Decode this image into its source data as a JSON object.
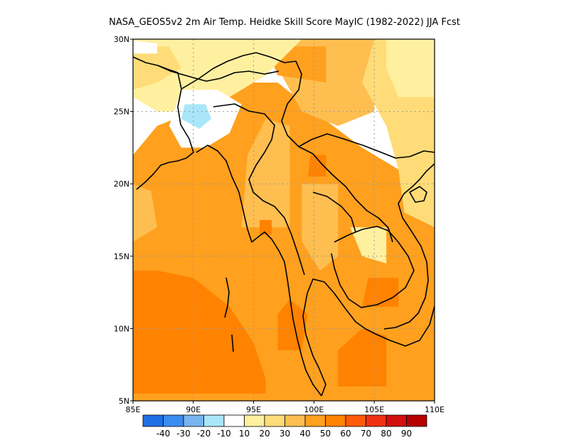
{
  "title": "NASA_GEOS5v2 2m Air Temp. Heidke Skill Score MayIC (1982-2022) JJA Fcst",
  "chart_data": {
    "type": "heatmap",
    "title": "NASA_GEOS5v2 2m Air Temp. Heidke Skill Score MayIC (1982-2022) JJA Fcst",
    "xlim": [
      85,
      110
    ],
    "ylim": [
      5,
      30
    ],
    "x_ticks": [
      {
        "value": 85,
        "label": "85E"
      },
      {
        "value": 90,
        "label": "90E"
      },
      {
        "value": 95,
        "label": "95E"
      },
      {
        "value": 100,
        "label": "100E"
      },
      {
        "value": 105,
        "label": "105E"
      },
      {
        "value": 110,
        "label": "110E"
      }
    ],
    "y_ticks": [
      {
        "value": 5,
        "label": "5N"
      },
      {
        "value": 10,
        "label": "10N"
      },
      {
        "value": 15,
        "label": "15N"
      },
      {
        "value": 20,
        "label": "20N"
      },
      {
        "value": 25,
        "label": "25N"
      },
      {
        "value": 30,
        "label": "30N"
      }
    ],
    "grid": true,
    "colorbar": {
      "placement": "bottom",
      "bins": [
        {
          "color": "#1e6ee6"
        },
        {
          "color": "#3c8cf0"
        },
        {
          "color": "#78b4f0"
        },
        {
          "color": "#aae6fa"
        },
        {
          "color": "#ffffff"
        },
        {
          "color": "#fff0a0"
        },
        {
          "color": "#ffdc78"
        },
        {
          "color": "#ffbe50"
        },
        {
          "color": "#ffa01e"
        },
        {
          "color": "#ff8200"
        },
        {
          "color": "#ff5a0a"
        },
        {
          "color": "#f03214"
        },
        {
          "color": "#d20f0f"
        },
        {
          "color": "#b40000"
        }
      ],
      "labels": [
        "-40",
        "-30",
        "-20",
        "-10",
        "10",
        "20",
        "30",
        "40",
        "50",
        "60",
        "70",
        "80",
        "90"
      ]
    },
    "regions": [
      {
        "level": 40,
        "polygon": [
          [
            85,
            5
          ],
          [
            110,
            5
          ],
          [
            110,
            17
          ],
          [
            107,
            21
          ],
          [
            104,
            22.5
          ],
          [
            100,
            25
          ],
          [
            97,
            27
          ],
          [
            93,
            27
          ],
          [
            90,
            25
          ],
          [
            87,
            24
          ],
          [
            85,
            22
          ]
        ]
      },
      {
        "level": 30,
        "polygon": [
          [
            93,
            30
          ],
          [
            105,
            30
          ],
          [
            105,
            25
          ],
          [
            102,
            24
          ],
          [
            99,
            25
          ],
          [
            97,
            28
          ],
          [
            94,
            29
          ]
        ]
      },
      {
        "level": 40,
        "polygon": [
          [
            96,
            29.5
          ],
          [
            101,
            29.5
          ],
          [
            101,
            27
          ],
          [
            97,
            27.5
          ]
        ]
      },
      {
        "level": 20,
        "polygon": [
          [
            105,
            30
          ],
          [
            110,
            30
          ],
          [
            110,
            17
          ],
          [
            107.5,
            18
          ],
          [
            107,
            21
          ],
          [
            106,
            24
          ],
          [
            104,
            27
          ]
        ]
      },
      {
        "level": 10,
        "polygon": [
          [
            85,
            26
          ],
          [
            85,
            30
          ],
          [
            99,
            30
          ],
          [
            96,
            27.5
          ],
          [
            93,
            26
          ],
          [
            90,
            25
          ],
          [
            87,
            25
          ]
        ]
      },
      {
        "level": 10,
        "polygon": [
          [
            106,
            30
          ],
          [
            110,
            30
          ],
          [
            110,
            26
          ],
          [
            107,
            26
          ],
          [
            106,
            28
          ]
        ]
      },
      {
        "level": 10,
        "polygon": [
          [
            103,
            17
          ],
          [
            106,
            17
          ],
          [
            106,
            14.5
          ],
          [
            104,
            15
          ]
        ]
      },
      {
        "level": 20,
        "polygon": [
          [
            85,
            26.5
          ],
          [
            85,
            29.5
          ],
          [
            88,
            29.5
          ],
          [
            89,
            28
          ],
          [
            87,
            27
          ]
        ]
      },
      {
        "level": -10,
        "polygon": [
          [
            88,
            24
          ],
          [
            89,
            26.5
          ],
          [
            92,
            26.5
          ],
          [
            94,
            25.5
          ],
          [
            93,
            23.5
          ],
          [
            91,
            22.5
          ],
          [
            89,
            22.5
          ]
        ]
      },
      {
        "level": -10,
        "polygon": [
          [
            85,
            29
          ],
          [
            87,
            29
          ],
          [
            87,
            29.7
          ],
          [
            85,
            29.9
          ]
        ]
      },
      {
        "level": -20,
        "polygon": [
          [
            89,
            24.5
          ],
          [
            89.3,
            25.5
          ],
          [
            91,
            25.5
          ],
          [
            91.5,
            24.5
          ],
          [
            90.5,
            23.8
          ]
        ]
      },
      {
        "level": 30,
        "polygon": [
          [
            94,
            17
          ],
          [
            98,
            17
          ],
          [
            98,
            24
          ],
          [
            96,
            24.5
          ],
          [
            94.5,
            22
          ]
        ]
      },
      {
        "level": 30,
        "polygon": [
          [
            99,
            20
          ],
          [
            102,
            20
          ],
          [
            102,
            15
          ],
          [
            100.5,
            14
          ],
          [
            99,
            16
          ]
        ]
      },
      {
        "level": 30,
        "polygon": [
          [
            85,
            16
          ],
          [
            87,
            17
          ],
          [
            86.5,
            19.5
          ],
          [
            85,
            20
          ]
        ]
      },
      {
        "level": 50,
        "polygon": [
          [
            85,
            5.5
          ],
          [
            96,
            5.5
          ],
          [
            96,
            6.5
          ],
          [
            95,
            9
          ],
          [
            93,
            11.5
          ],
          [
            90,
            13.5
          ],
          [
            87,
            14
          ],
          [
            85,
            14
          ]
        ]
      },
      {
        "level": 50,
        "polygon": [
          [
            102,
            6
          ],
          [
            106,
            6
          ],
          [
            106,
            9.5
          ],
          [
            104,
            10
          ],
          [
            102,
            8.5
          ]
        ]
      },
      {
        "level": 50,
        "polygon": [
          [
            97,
            8.5
          ],
          [
            99,
            8.5
          ],
          [
            99.5,
            11
          ],
          [
            98,
            12
          ],
          [
            97,
            11
          ]
        ]
      },
      {
        "level": 50,
        "polygon": [
          [
            104,
            11.5
          ],
          [
            107,
            11.5
          ],
          [
            107,
            13.5
          ],
          [
            104.5,
            13.5
          ]
        ]
      },
      {
        "level": 50,
        "polygon": [
          [
            99.5,
            20.5
          ],
          [
            101,
            20.5
          ],
          [
            101,
            22
          ],
          [
            99.7,
            22
          ]
        ]
      },
      {
        "level": 50,
        "polygon": [
          [
            95.5,
            16.5
          ],
          [
            96.5,
            16.5
          ],
          [
            96.5,
            17.5
          ],
          [
            95.5,
            17.5
          ]
        ]
      },
      {
        "level": 40,
        "polygon": [
          [
            106.5,
            5
          ],
          [
            110,
            5
          ],
          [
            110,
            8
          ],
          [
            107,
            8
          ]
        ]
      }
    ]
  }
}
